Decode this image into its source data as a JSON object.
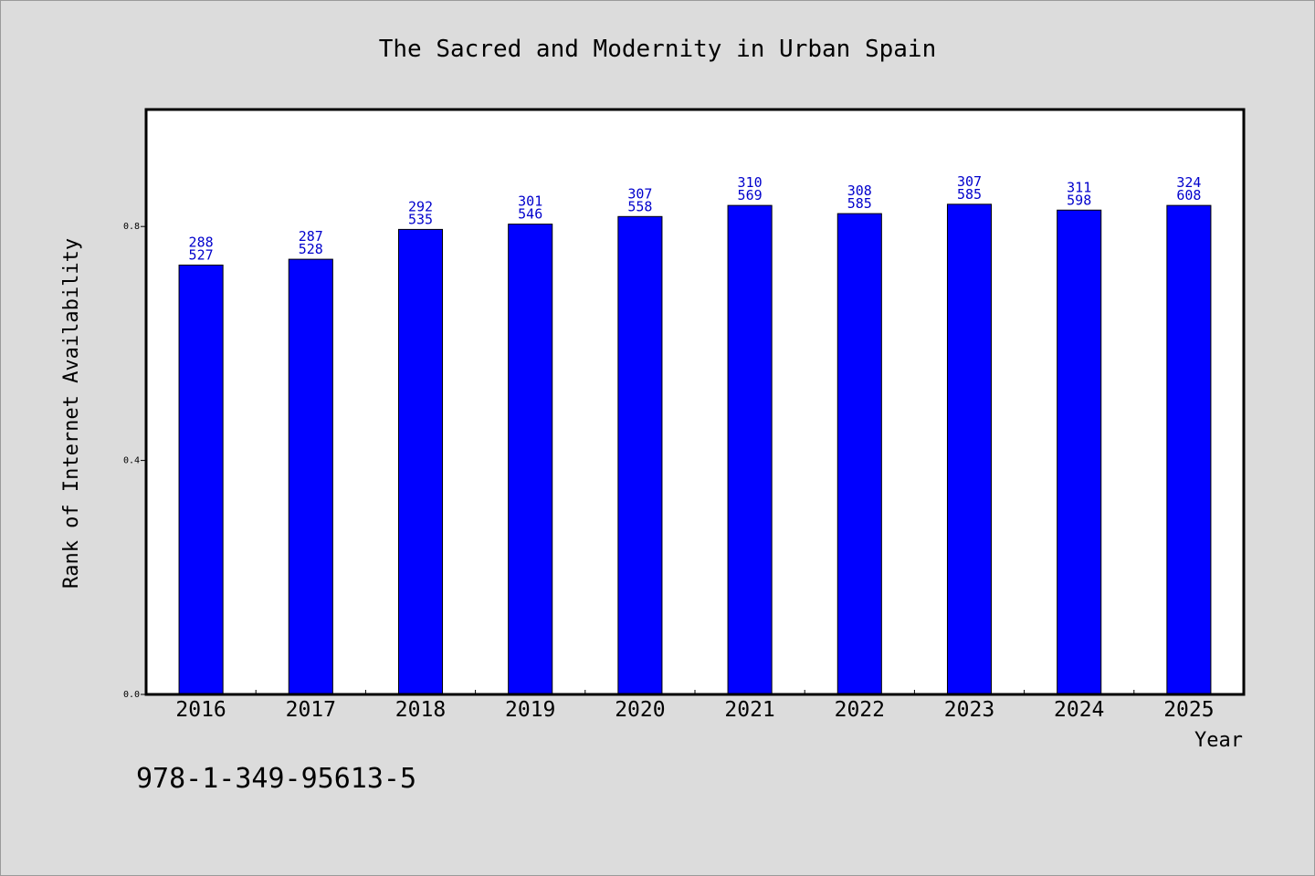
{
  "chart_data": {
    "type": "bar",
    "title": "The Sacred and Modernity in Urban Spain",
    "xlabel": "Year",
    "ylabel": "Rank of Internet Availability",
    "categories": [
      "2016",
      "2017",
      "2018",
      "2019",
      "2020",
      "2021",
      "2022",
      "2023",
      "2024",
      "2025"
    ],
    "values": [
      0.734,
      0.744,
      0.795,
      0.804,
      0.817,
      0.836,
      0.822,
      0.838,
      0.828,
      0.836
    ],
    "label_top": [
      "288",
      "287",
      "292",
      "301",
      "307",
      "310",
      "308",
      "307",
      "311",
      "324"
    ],
    "label_bottom": [
      "527",
      "528",
      "535",
      "546",
      "558",
      "569",
      "585",
      "585",
      "598",
      "608"
    ],
    "yticks": [
      "0.0",
      "0.4",
      "0.8"
    ],
    "ytick_values": [
      0.0,
      0.4,
      0.8
    ],
    "ylim": [
      0,
      1.0
    ],
    "grid": false,
    "bar_color": "#0000ff",
    "label_color": "#0000cc",
    "plot_background": "#ffffff",
    "page_background": "#dcdcdc"
  },
  "footer": {
    "isbn": "978-1-349-95613-5"
  }
}
